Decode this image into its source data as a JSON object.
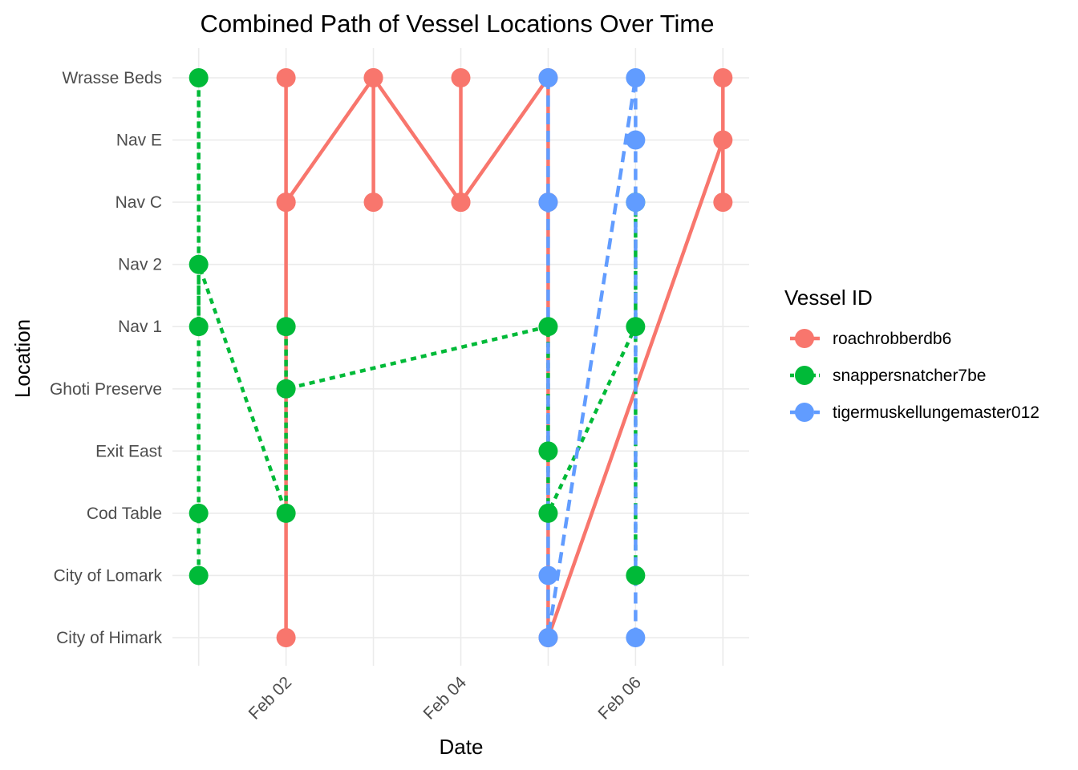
{
  "chart_data": {
    "type": "line",
    "title": "Combined Path of Vessel Locations Over Time",
    "xlabel": "Date",
    "ylabel": "Location",
    "x_ticks": [
      "Feb 02",
      "Feb 04",
      "Feb 06"
    ],
    "x_tick_dates": [
      "2035-02-02",
      "2035-02-04",
      "2035-02-06"
    ],
    "x_range": [
      "2035-01-31T16:48",
      "2035-02-07T07:12"
    ],
    "x_grid_dates": [
      "2035-02-01",
      "2035-02-02",
      "2035-02-03",
      "2035-02-04",
      "2035-02-05",
      "2035-02-06",
      "2035-02-07"
    ],
    "categories": [
      "City of Himark",
      "City of Lomark",
      "Cod Table",
      "Exit East",
      "Ghoti Preserve",
      "Nav 1",
      "Nav 2",
      "Nav C",
      "Nav E",
      "Wrasse Beds"
    ],
    "grid": true,
    "legend": {
      "title": "Vessel ID",
      "position": "right",
      "entries": [
        "roachrobberdb6",
        "snappersnatcher7be",
        "tigermuskellungemaster012"
      ]
    },
    "series": [
      {
        "name": "roachrobberdb6",
        "color": "#F8766D",
        "dash": "solid",
        "points": [
          {
            "x": "2035-02-02",
            "y": "City of Himark"
          },
          {
            "x": "2035-02-02",
            "y": "Nav C"
          },
          {
            "x": "2035-02-02",
            "y": "Wrasse Beds"
          },
          {
            "x": "2035-02-02",
            "y": "Nav C"
          },
          {
            "x": "2035-02-03",
            "y": "Wrasse Beds"
          },
          {
            "x": "2035-02-03",
            "y": "Nav C"
          },
          {
            "x": "2035-02-03",
            "y": "Wrasse Beds"
          },
          {
            "x": "2035-02-04",
            "y": "Nav C"
          },
          {
            "x": "2035-02-04",
            "y": "Wrasse Beds"
          },
          {
            "x": "2035-02-04",
            "y": "Nav C"
          },
          {
            "x": "2035-02-05",
            "y": "Wrasse Beds"
          },
          {
            "x": "2035-02-05",
            "y": "Nav C"
          },
          {
            "x": "2035-02-05",
            "y": "City of Himark"
          },
          {
            "x": "2035-02-07",
            "y": "Nav E"
          },
          {
            "x": "2035-02-07",
            "y": "Wrasse Beds"
          },
          {
            "x": "2035-02-07",
            "y": "Nav C"
          }
        ]
      },
      {
        "name": "snappersnatcher7be",
        "color": "#00BA38",
        "dash": "dotted",
        "points": [
          {
            "x": "2035-02-01",
            "y": "City of Lomark"
          },
          {
            "x": "2035-02-01",
            "y": "Cod Table"
          },
          {
            "x": "2035-02-01",
            "y": "Wrasse Beds"
          },
          {
            "x": "2035-02-01",
            "y": "Nav 1"
          },
          {
            "x": "2035-02-01",
            "y": "Nav 2"
          },
          {
            "x": "2035-02-02",
            "y": "Cod Table"
          },
          {
            "x": "2035-02-02",
            "y": "Nav 1"
          },
          {
            "x": "2035-02-02",
            "y": "Ghoti Preserve"
          },
          {
            "x": "2035-02-05",
            "y": "Nav 1"
          },
          {
            "x": "2035-02-05",
            "y": "Exit East"
          },
          {
            "x": "2035-02-05",
            "y": "Cod Table"
          },
          {
            "x": "2035-02-06",
            "y": "Nav 1"
          },
          {
            "x": "2035-02-06",
            "y": "Nav C"
          },
          {
            "x": "2035-02-06",
            "y": "City of Lomark"
          }
        ]
      },
      {
        "name": "tigermuskellungemaster012",
        "color": "#619CFF",
        "dash": "dashed",
        "points": [
          {
            "x": "2035-02-05",
            "y": "Wrasse Beds"
          },
          {
            "x": "2035-02-05",
            "y": "Nav C"
          },
          {
            "x": "2035-02-05",
            "y": "City of Lomark"
          },
          {
            "x": "2035-02-05",
            "y": "City of Himark"
          },
          {
            "x": "2035-02-06",
            "y": "Wrasse Beds"
          },
          {
            "x": "2035-02-06",
            "y": "Nav E"
          },
          {
            "x": "2035-02-06",
            "y": "Nav C"
          },
          {
            "x": "2035-02-06",
            "y": "City of Himark"
          }
        ]
      }
    ]
  }
}
